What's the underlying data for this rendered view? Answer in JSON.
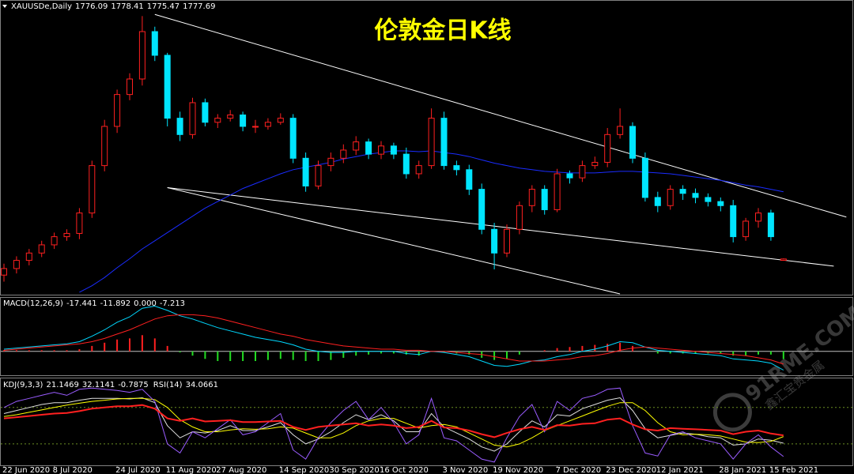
{
  "chart_data": [
    {
      "type": "candlestick",
      "title": "伦敦金日K线",
      "symbol": "XAUUSDe,Daily",
      "categories": [
        "22 Jun 2020",
        null,
        null,
        null,
        "8 Jul 2020",
        null,
        null,
        null,
        null,
        "24 Jul 2020",
        null,
        null,
        null,
        "11 Aug 2020",
        null,
        null,
        null,
        "27 Aug 2020",
        null,
        null,
        null,
        null,
        "14 Sep 2020",
        null,
        null,
        null,
        "30 Sep 2020",
        null,
        null,
        null,
        "16 Oct 2020",
        null,
        null,
        null,
        null,
        "3 Nov 2020",
        null,
        null,
        null,
        "19 Nov 2020",
        null,
        null,
        null,
        null,
        "7 Dec 2020",
        null,
        null,
        null,
        "23 Dec 2020",
        null,
        null,
        null,
        "12 Jan 2021",
        null,
        null,
        null,
        null,
        "28 Jan 2021",
        null,
        null,
        null,
        "15 Feb 2021",
        null
      ],
      "open": [
        1758,
        1766,
        1776,
        1785,
        1795,
        1805,
        1809,
        1834,
        1892,
        1940,
        1979,
        1998,
        2056,
        2027,
        1950,
        1930,
        1969,
        1945,
        1950,
        1954,
        1940,
        1940,
        1945,
        1950,
        1901,
        1867,
        1892,
        1901,
        1911,
        1921,
        1906,
        1916,
        1906,
        1882,
        1892,
        1950,
        1892,
        1887,
        1863,
        1814,
        1785,
        1814,
        1843,
        1863,
        1838,
        1882,
        1877,
        1892,
        1896,
        1930,
        1940,
        1901,
        1853,
        1843,
        1863,
        1858,
        1853,
        1848,
        1843,
        1805,
        1824,
        1834,
        1776.09
      ],
      "high": [
        1772,
        1781,
        1790,
        1800,
        1810,
        1814,
        1840,
        1898,
        1948,
        1985,
        2005,
        2075,
        2062,
        2030,
        1958,
        1975,
        1974,
        1955,
        1960,
        1958,
        1948,
        1950,
        1956,
        1955,
        1908,
        1898,
        1908,
        1918,
        1928,
        1925,
        1922,
        1920,
        1914,
        1898,
        1962,
        1958,
        1898,
        1893,
        1870,
        1822,
        1820,
        1848,
        1868,
        1868,
        1888,
        1886,
        1898,
        1903,
        1938,
        1962,
        1945,
        1908,
        1860,
        1868,
        1868,
        1864,
        1858,
        1853,
        1850,
        1828,
        1840,
        1838,
        1778.41
      ],
      "low": [
        1750,
        1760,
        1770,
        1780,
        1790,
        1800,
        1802,
        1828,
        1885,
        1932,
        1972,
        1990,
        2020,
        1940,
        1922,
        1925,
        1940,
        1938,
        1946,
        1934,
        1932,
        1936,
        1942,
        1895,
        1860,
        1863,
        1885,
        1895,
        1905,
        1900,
        1900,
        1900,
        1876,
        1876,
        1888,
        1887,
        1880,
        1856,
        1808,
        1765,
        1780,
        1808,
        1835,
        1832,
        1835,
        1870,
        1872,
        1888,
        1890,
        1925,
        1895,
        1848,
        1835,
        1838,
        1850,
        1846,
        1842,
        1836,
        1798,
        1800,
        1816,
        1800,
        1775.47
      ],
      "close": [
        1766,
        1776,
        1785,
        1795,
        1805,
        1809,
        1834,
        1892,
        1940,
        1979,
        1998,
        2056,
        2027,
        1950,
        1930,
        1969,
        1945,
        1950,
        1954,
        1940,
        1940,
        1945,
        1950,
        1901,
        1867,
        1892,
        1901,
        1911,
        1921,
        1906,
        1916,
        1906,
        1882,
        1892,
        1950,
        1892,
        1887,
        1863,
        1814,
        1785,
        1814,
        1843,
        1863,
        1838,
        1882,
        1877,
        1892,
        1896,
        1930,
        1940,
        1901,
        1853,
        1843,
        1863,
        1858,
        1853,
        1848,
        1843,
        1805,
        1824,
        1834,
        1805,
        1777.69
      ],
      "up_color": "#ff2020",
      "down_color": "#00e5ff",
      "ylim": [
        1735,
        2085
      ],
      "series": [
        {
          "color": "#1a2cff",
          "values": [
            null,
            null,
            null,
            null,
            null,
            null,
            1737,
            1745,
            1755,
            1767,
            1778,
            1790,
            1800,
            1810,
            1820,
            1830,
            1840,
            1848,
            1856,
            1864,
            1870,
            1876,
            1882,
            1887,
            1890,
            1893,
            1896,
            1900,
            1903,
            1906,
            1908,
            1910,
            1910,
            1909,
            1910,
            1908,
            1906,
            1903,
            1899,
            1895,
            1892,
            1889,
            1887,
            1885,
            1884,
            1883,
            1883,
            1883,
            1884,
            1885,
            1885,
            1884,
            1883,
            1882,
            1880,
            1878,
            1876,
            1874,
            1871,
            1868,
            1866,
            1863,
            1860
          ]
        }
      ],
      "trendlines": [
        {
          "x": [
            12,
            67
          ],
          "y": [
            2077,
            1829
          ]
        },
        {
          "x": [
            13,
            66
          ],
          "y": [
            1865,
            1769
          ]
        },
        {
          "x": [
            13,
            49
          ],
          "y": [
            1865,
            1735
          ]
        }
      ],
      "trendline_color": "#ffffff"
    },
    {
      "type": "macd",
      "title": "MACD(12,26,9)",
      "series": [
        {
          "color": "#00d8ff",
          "values": [
            2,
            3,
            4,
            5,
            6,
            7,
            9,
            14,
            20,
            27,
            32,
            40,
            42,
            38,
            33,
            30,
            26,
            22,
            19,
            16,
            13,
            11,
            9,
            6,
            2,
            0,
            -1,
            -1,
            0,
            0,
            0,
            0,
            -2,
            -3,
            0,
            -1,
            -3,
            -5,
            -9,
            -13,
            -14,
            -12,
            -9,
            -8,
            -5,
            -3,
            0,
            2,
            5,
            9,
            8,
            4,
            1,
            0,
            -1,
            -2,
            -3,
            -4,
            -7,
            -8,
            -9,
            -11,
            -17.441
          ]
        },
        {
          "color": "#ff2020",
          "values": [
            1,
            2,
            3,
            4,
            5,
            6,
            7,
            9,
            12,
            16,
            20,
            25,
            30,
            33,
            34,
            34,
            33,
            31,
            28,
            25,
            22,
            19,
            16,
            14,
            11,
            9,
            7,
            5,
            4,
            3,
            2,
            2,
            1,
            1,
            0,
            0,
            -1,
            -2,
            -3,
            -5,
            -7,
            -9,
            -9,
            -9,
            -8,
            -7,
            -5,
            -4,
            -2,
            1,
            3,
            4,
            3,
            2,
            1,
            0,
            -1,
            -2,
            -3,
            -4,
            -6,
            -8,
            -11.892
          ]
        }
      ],
      "level": {
        "value": 0,
        "label": "0.000"
      },
      "hist": {
        "up_color": "#ff2020",
        "down_color": "#22dd22",
        "values": [
          1,
          1,
          1,
          1,
          1,
          1,
          2,
          5,
          8,
          11,
          12,
          15,
          12,
          5,
          -1,
          -4,
          -7,
          -9,
          -9,
          -9,
          -9,
          -8,
          -7,
          -8,
          -9,
          -9,
          -8,
          -6,
          -4,
          -3,
          -2,
          -2,
          -3,
          -4,
          0,
          -1,
          -2,
          -3,
          -6,
          -8,
          -7,
          -3,
          0,
          1,
          3,
          4,
          5,
          6,
          7,
          8,
          5,
          0,
          -2,
          -2,
          -2,
          -2,
          -2,
          -2,
          -4,
          -4,
          -3,
          -3,
          -7.213
        ]
      },
      "ylim": [
        -20,
        46
      ]
    },
    {
      "type": "line",
      "title": "KDJ(9,3,3)",
      "series": [
        {
          "color": "#e0e0e0",
          "values": [
            70,
            75,
            80,
            85,
            88,
            88,
            92,
            95,
            95,
            95,
            94,
            96,
            88,
            50,
            30,
            40,
            38,
            42,
            50,
            42,
            42,
            48,
            55,
            35,
            20,
            28,
            40,
            55,
            68,
            60,
            68,
            58,
            40,
            40,
            70,
            48,
            38,
            28,
            15,
            8,
            20,
            40,
            58,
            48,
            68,
            66,
            78,
            85,
            92,
            96,
            75,
            45,
            30,
            34,
            38,
            36,
            32,
            30,
            18,
            20,
            28,
            26,
            21.1469
          ]
        },
        {
          "color": "#ffff00",
          "values": [
            65,
            68,
            72,
            76,
            80,
            84,
            87,
            90,
            92,
            94,
            95,
            95,
            93,
            80,
            60,
            48,
            40,
            40,
            43,
            45,
            44,
            45,
            48,
            46,
            38,
            30,
            30,
            38,
            50,
            58,
            62,
            62,
            54,
            46,
            50,
            52,
            48,
            38,
            28,
            18,
            15,
            20,
            30,
            42,
            50,
            58,
            66,
            74,
            82,
            88,
            88,
            75,
            55,
            40,
            35,
            36,
            35,
            33,
            28,
            23,
            22,
            24,
            32.1141
          ]
        },
        {
          "color": "#9a5cff",
          "values": [
            80,
            90,
            95,
            100,
            105,
            100,
            110,
            112,
            110,
            108,
            105,
            110,
            90,
            20,
            5,
            40,
            30,
            45,
            60,
            35,
            40,
            55,
            70,
            10,
            -5,
            30,
            55,
            75,
            90,
            60,
            80,
            55,
            20,
            35,
            95,
            30,
            25,
            10,
            -5,
            -10,
            30,
            65,
            85,
            40,
            90,
            75,
            95,
            100,
            110,
            112,
            50,
            5,
            0,
            35,
            40,
            30,
            25,
            20,
            -5,
            20,
            35,
            15,
            -0.7875
          ]
        },
        {
          "name": "RSI(14)",
          "color": "#ff2020",
          "width": 2,
          "values": [
            62,
            64,
            66,
            68,
            70,
            71,
            74,
            78,
            80,
            82,
            82,
            84,
            78,
            62,
            58,
            62,
            57,
            58,
            59,
            56,
            56,
            57,
            58,
            48,
            43,
            48,
            50,
            52,
            54,
            50,
            52,
            50,
            46,
            48,
            58,
            47,
            46,
            42,
            36,
            31,
            38,
            44,
            48,
            43,
            51,
            50,
            53,
            54,
            60,
            62,
            52,
            44,
            42,
            46,
            45,
            44,
            43,
            42,
            36,
            40,
            42,
            37,
            34.0661
          ]
        }
      ],
      "levels": [
        20,
        80
      ],
      "level_color": "#6b8e23",
      "ylim": [
        -14,
        124
      ]
    }
  ],
  "watermark": {
    "text": "91RME.COM",
    "subtext": "鑫汇宝贵金属"
  }
}
